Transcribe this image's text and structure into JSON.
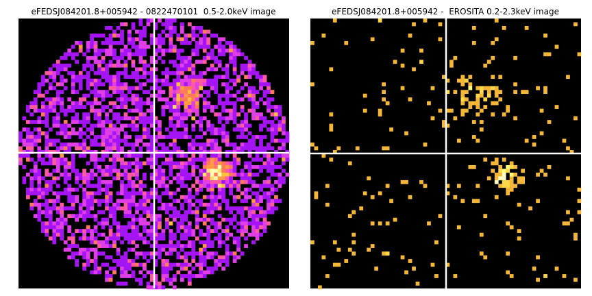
{
  "panels": [
    {
      "title": "eFEDSJ084201.8+005942 - 0822470101  0.5-2.0keV image"
    },
    {
      "title": "eFEDSJ084201.8+005942 -  EROSITA 0.2-2.3keV image"
    }
  ]
}
